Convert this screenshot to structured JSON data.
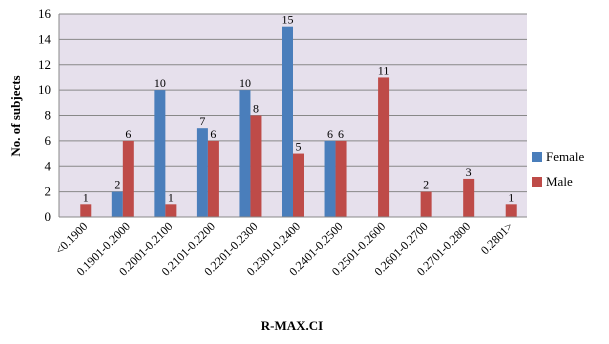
{
  "chart_data": {
    "type": "bar",
    "title": "",
    "xlabel": "R-MAX.CI",
    "ylabel": "No. of subjects",
    "ylim": [
      0,
      16
    ],
    "yticks": [
      0,
      2,
      4,
      6,
      8,
      10,
      12,
      14,
      16
    ],
    "grid": true,
    "legend_position": "right",
    "categories": [
      "<0.1900",
      "0.1901-0.2000",
      "0.2001-0.2100",
      "0.2101-0.2200",
      "0.2201-0.2300",
      "0.2301-0.2400",
      "0.2401-0.2500",
      "0.2501-0.2600",
      "0.2601-0.2700",
      "0.2701-0.2800",
      "0.2801>"
    ],
    "series": [
      {
        "name": "Female",
        "color": "#4a7ebb",
        "values": [
          0,
          2,
          10,
          7,
          10,
          15,
          6,
          0,
          0,
          0,
          0
        ]
      },
      {
        "name": "Male",
        "color": "#be4b48",
        "values": [
          1,
          6,
          1,
          6,
          8,
          5,
          6,
          11,
          2,
          3,
          1
        ]
      }
    ],
    "plot_background": "#e6e0ec",
    "gridline_color": "#888888"
  }
}
